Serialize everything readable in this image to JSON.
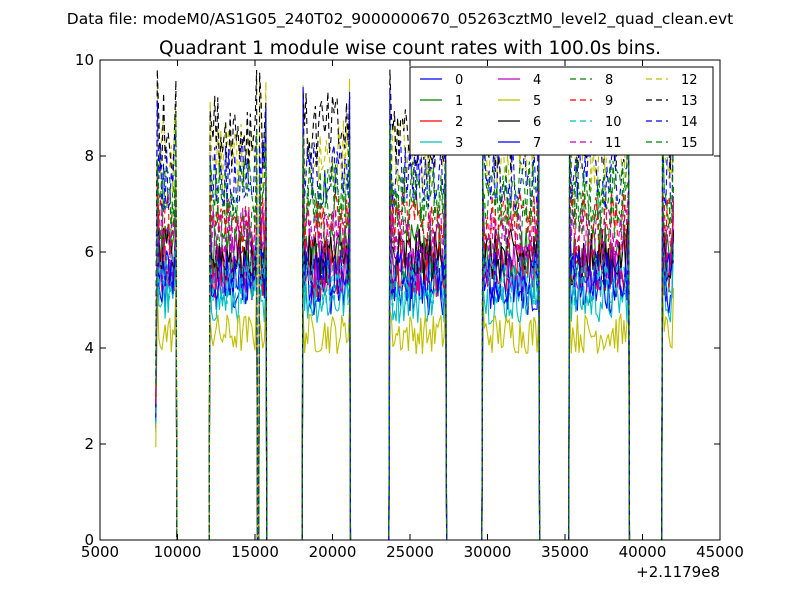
{
  "chart_data": {
    "type": "line",
    "suptitle": "Data file: modeM0/AS1G05_240T02_9000000670_05263cztM0_level2_quad_clean.evt",
    "title": "Quadrant 1 module wise count rates with 100.0s bins.",
    "xlabel": "",
    "ylabel": "",
    "xlim": [
      5000,
      45000
    ],
    "ylim": [
      0,
      10
    ],
    "x_ticks": [
      5000,
      10000,
      15000,
      20000,
      25000,
      30000,
      35000,
      40000,
      45000
    ],
    "y_ticks": [
      0,
      2,
      4,
      6,
      8,
      10
    ],
    "x_offset_label": "+2.1179e8",
    "grid": false,
    "legend_position": "top-right",
    "legend_columns": 4,
    "bin_seconds": 100,
    "segments": [
      {
        "start": 8700,
        "end": 9900,
        "zero_after": 10000
      },
      {
        "start": 12100,
        "end": 15100,
        "zero_after": 15300
      },
      {
        "start": 15300,
        "end": 15700,
        "zero_after": 15900
      },
      {
        "start": 18100,
        "end": 21100,
        "zero_after": 21300
      },
      {
        "start": 23700,
        "end": 27300,
        "zero_after": 27500
      },
      {
        "start": 29700,
        "end": 33300,
        "zero_after": 33500
      },
      {
        "start": 35300,
        "end": 39100,
        "zero_after": 39300
      },
      {
        "start": 41300,
        "end": 42000,
        "zero_after": null
      }
    ],
    "series": [
      {
        "name": "0",
        "color": "#0000ff",
        "dash": "solid",
        "level": 5.2
      },
      {
        "name": "1",
        "color": "#008000",
        "dash": "solid",
        "level": 6.0
      },
      {
        "name": "2",
        "color": "#ff0000",
        "dash": "solid",
        "level": 5.6
      },
      {
        "name": "3",
        "color": "#00bfbf",
        "dash": "solid",
        "level": 5.0
      },
      {
        "name": "4",
        "color": "#bf00bf",
        "dash": "solid",
        "level": 5.7
      },
      {
        "name": "5",
        "color": "#bfbf00",
        "dash": "solid",
        "level": 4.3
      },
      {
        "name": "6",
        "color": "#000000",
        "dash": "solid",
        "level": 5.9
      },
      {
        "name": "7",
        "color": "#0000ff",
        "dash": "solid",
        "level": 5.5
      },
      {
        "name": "8",
        "color": "#008000",
        "dash": "dashed",
        "level": 6.8
      },
      {
        "name": "9",
        "color": "#ff0000",
        "dash": "dashed",
        "level": 6.6
      },
      {
        "name": "10",
        "color": "#00bfbf",
        "dash": "dashed",
        "level": 5.4
      },
      {
        "name": "11",
        "color": "#bf00bf",
        "dash": "dashed",
        "level": 6.3
      },
      {
        "name": "12",
        "color": "#bfbf00",
        "dash": "dashed",
        "level": 8.0
      },
      {
        "name": "13",
        "color": "#000000",
        "dash": "dashed",
        "level": 8.5
      },
      {
        "name": "14",
        "color": "#0000ff",
        "dash": "dashed",
        "level": 7.6
      },
      {
        "name": "15",
        "color": "#008000",
        "dash": "dashed",
        "level": 7.2
      }
    ]
  }
}
